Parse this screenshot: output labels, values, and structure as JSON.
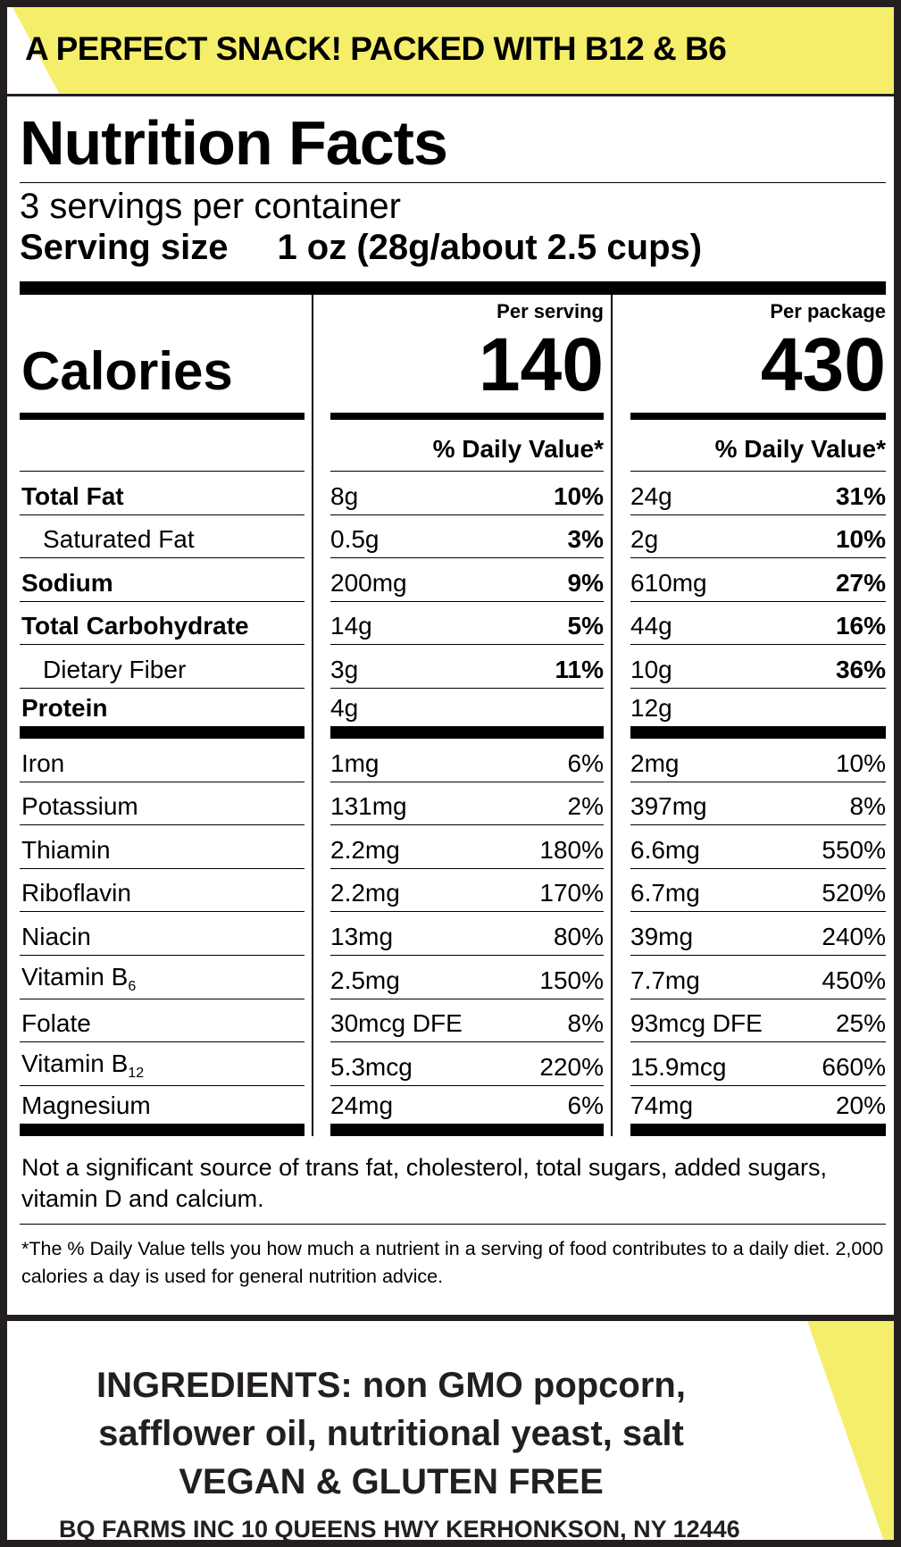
{
  "banner": "A PERFECT SNACK! PACKED WITH B12 & B6",
  "title": "Nutrition Facts",
  "servings": "3 servings per container",
  "serving_size_label": "Serving size",
  "serving_size_value": "1 oz (28g/about 2.5 cups)",
  "calories_label": "Calories",
  "per_serving_label": "Per serving",
  "per_package_label": "Per package",
  "calories_serving": "140",
  "calories_package": "430",
  "dv_header": "% Daily Value*",
  "main_nutrients": [
    {
      "name": "Total Fat",
      "bold": true,
      "s_amt": "8g",
      "s_dv": "10%",
      "p_amt": "24g",
      "p_dv": "31%"
    },
    {
      "name": "Saturated Fat",
      "bold": false,
      "s_amt": "0.5g",
      "s_dv": "3%",
      "p_amt": "2g",
      "p_dv": "10%"
    },
    {
      "name": "Sodium",
      "bold": true,
      "s_amt": "200mg",
      "s_dv": "9%",
      "p_amt": "610mg",
      "p_dv": "27%"
    },
    {
      "name": "Total Carbohydrate",
      "bold": true,
      "s_amt": "14g",
      "s_dv": "5%",
      "p_amt": "44g",
      "p_dv": "16%"
    },
    {
      "name": "Dietary Fiber",
      "bold": false,
      "s_amt": "3g",
      "s_dv": "11%",
      "p_amt": "10g",
      "p_dv": "36%"
    },
    {
      "name": "Protein",
      "bold": true,
      "s_amt": "4g",
      "s_dv": "",
      "p_amt": "12g",
      "p_dv": ""
    }
  ],
  "micronutrients": [
    {
      "name": "Iron",
      "sub": "",
      "s_amt": "1mg",
      "s_dv": "6%",
      "p_amt": "2mg",
      "p_dv": "10%"
    },
    {
      "name": "Potassium",
      "sub": "",
      "s_amt": "131mg",
      "s_dv": "2%",
      "p_amt": "397mg",
      "p_dv": "8%"
    },
    {
      "name": "Thiamin",
      "sub": "",
      "s_amt": "2.2mg",
      "s_dv": "180%",
      "p_amt": "6.6mg",
      "p_dv": "550%"
    },
    {
      "name": "Riboflavin",
      "sub": "",
      "s_amt": "2.2mg",
      "s_dv": "170%",
      "p_amt": "6.7mg",
      "p_dv": "520%"
    },
    {
      "name": "Niacin",
      "sub": "",
      "s_amt": "13mg",
      "s_dv": "80%",
      "p_amt": "39mg",
      "p_dv": "240%"
    },
    {
      "name": "Vitamin B",
      "sub": "6",
      "s_amt": "2.5mg",
      "s_dv": "150%",
      "p_amt": "7.7mg",
      "p_dv": "450%"
    },
    {
      "name": "Folate",
      "sub": "",
      "s_amt": "30mcg DFE",
      "s_dv": "8%",
      "p_amt": "93mcg DFE",
      "p_dv": "25%"
    },
    {
      "name": "Vitamin B",
      "sub": "12",
      "s_amt": "5.3mcg",
      "s_dv": "220%",
      "p_amt": "15.9mcg",
      "p_dv": "660%"
    },
    {
      "name": "Magnesium",
      "sub": "",
      "s_amt": "24mg",
      "s_dv": "6%",
      "p_amt": "74mg",
      "p_dv": "20%"
    }
  ],
  "not_significant": "Not a significant source of trans fat, cholesterol, total sugars, added sugars, vitamin D and calcium.",
  "footnote": "*The % Daily Value tells you how much a nutrient in a serving of food contributes to a daily diet. 2,000 calories a day is used for general nutrition advice.",
  "ingredients_line1": "INGREDIENTS: non GMO popcorn,",
  "ingredients_line2": "safflower oil, nutritional yeast, salt",
  "claims": "VEGAN & GLUTEN FREE",
  "address": "BQ FARMS INC 10 QUEENS HWY KERHONKSON, NY 12446",
  "colors": {
    "yellow": "#f5ee6b",
    "border": "#231f20"
  }
}
